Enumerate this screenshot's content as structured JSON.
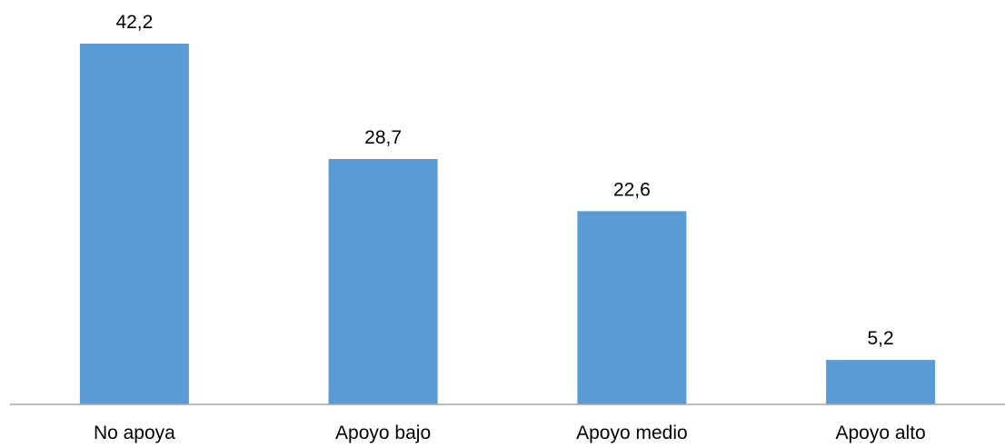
{
  "chart_data": {
    "type": "bar",
    "categories": [
      "No apoya",
      "Apoyo bajo",
      "Apoyo medio",
      "Apoyo alto"
    ],
    "values": [
      42.2,
      28.7,
      22.6,
      5.2
    ],
    "value_labels": [
      "42,2",
      "28,7",
      "22,6",
      "5,2"
    ],
    "title": "",
    "xlabel": "",
    "ylabel": "",
    "ylim": [
      0,
      45.0
    ],
    "grid": false,
    "legend": "none",
    "colors": {
      "bar": "#5b9bd5",
      "axis": "#a6a6a6",
      "text": "#000000"
    }
  }
}
